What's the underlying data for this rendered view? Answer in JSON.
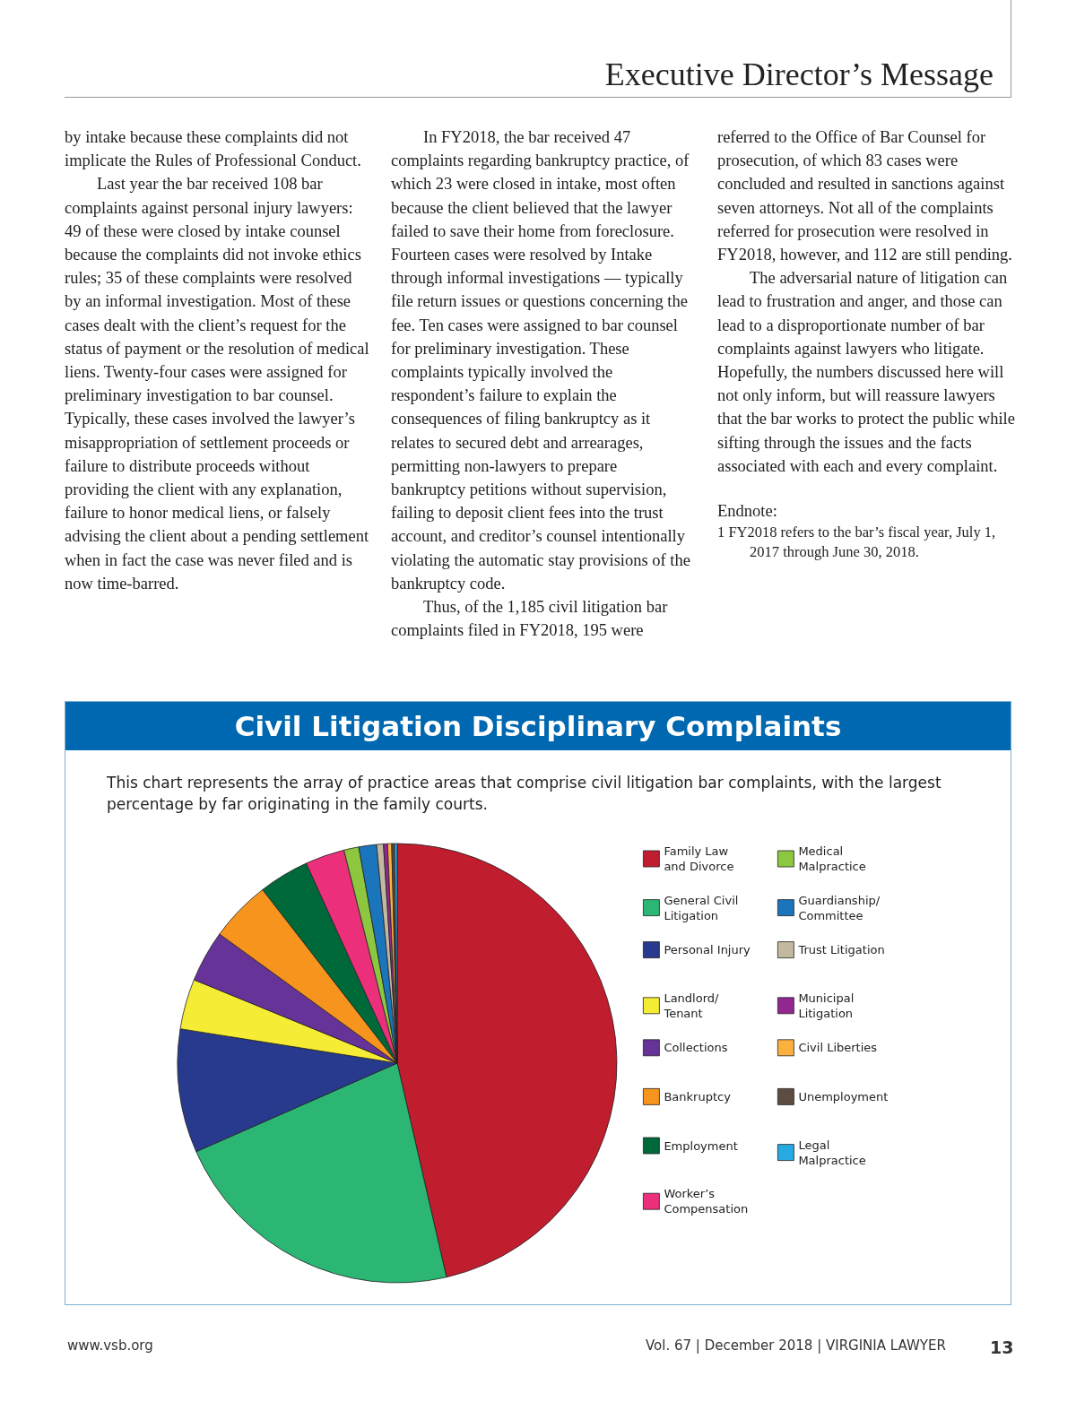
{
  "chart_data": {
    "type": "pie",
    "title": "Civil Litigation Disciplinary Complaints",
    "subtitle": "This chart represents the array of practice areas that comprise civil litigation bar complaints, with the largest percentage by far originating in the family courts.",
    "categories": [
      "Family Law and Divorce",
      "General Civil Litigation",
      "Personal Injury",
      "Landlord/ Tenant",
      "Collections",
      "Bankruptcy",
      "Employment",
      "Worker’s Compensation",
      "Medical Malpractice",
      "Guardianship/ Committee",
      "Trust Litigation",
      "Municipal Litigation",
      "Civil Liberties",
      "Unemployment",
      "Legal Malpractice"
    ],
    "values": [
      46.4,
      22.0,
      9.1,
      3.7,
      3.8,
      4.5,
      3.7,
      2.9,
      1.1,
      1.3,
      0.5,
      0.3,
      0.3,
      0.2,
      0.2
    ],
    "colors": [
      "#c01d2e",
      "#2bb673",
      "#283a8e",
      "#f5ec35",
      "#663399",
      "#f7941d",
      "#00693a",
      "#ec2f7b",
      "#8dc63f",
      "#1a75bc",
      "#c3b9a0",
      "#92278f",
      "#fbb040",
      "#5c4c42",
      "#27aae1"
    ],
    "legend": "right",
    "annotations": [
      "Executive Director’s Message",
      "by intake because these complaints did not implicate the Rules of Professional Conduct.",
      "Last year the bar received 108 bar complaints against personal injury lawyers: 49 of these were closed by intake counsel because the complaints did not invoke ethics rules; 35 of these complaints were resolved by an informal investigation. Most of these cases dealt with the client’s request for the status of payment or the resolution of medical liens. Twenty-four cases were assigned for preliminary investigation to bar counsel. Typically, these cases involved the lawyer’s misappropriation of settlement proceeds or failure to distribute proceeds without providing the client with any explanation, failure to honor medical liens, or falsely advising the client about a pending settlement when in fact the case was never filed and is now time-barred.",
      "In FY2018, the bar received 47 complaints regarding bankruptcy practice, of which 23 were closed in intake, most often because the client believed that the lawyer failed to save their home from foreclosure. Fourteen cases were resolved by Intake through informal investigations — typically file return issues or questions concerning the fee. Ten cases were assigned to bar counsel for preliminary investigation. These complaints typically involved the respondent’s failure to explain the consequences of filing bankruptcy as it relates to secured debt and arrearages, permitting non-lawyers to prepare bankruptcy petitions without supervision, failing to deposit client fees into the trust account, and creditor’s counsel intentionally violating the automatic stay provisions of the bankruptcy code.",
      "Thus, of the 1,185 civil litigation bar complaints filed in FY2018, 195 were",
      "referred to the Office of Bar Counsel for prosecution, of which 83 cases were concluded and resulted in sanctions against seven attorneys. Not all of the complaints referred for prosecution were resolved in FY2018, however, and 112 are still pending.",
      "The adversarial nature of litigation can lead to frustration and anger, and those can lead to a disproportionate number of bar complaints against lawyers who litigate. Hopefully, the numbers discussed here will not only inform, but will reassure lawyers that the bar works to protect the public while sifting through the issues and the facts associated with each and every complaint.",
      "Endnote:",
      "1 FY2018 refers to the bar’s fiscal year, July 1, 2017 through June 30, 2018.",
      "www.vsb.org",
      "Vol. 67 | December 2018 | VIRGINIA LAWYER",
      "13"
    ]
  }
}
